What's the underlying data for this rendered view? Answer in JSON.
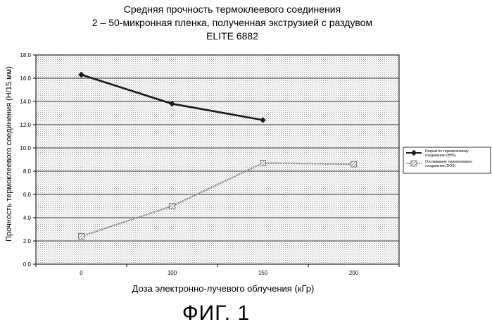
{
  "figure_caption": "ФИГ. 1",
  "chart_data": {
    "type": "line",
    "title_lines": [
      "Средняя прочность термоклеевого соединения",
      "2 – 50-микронная пленка, полученная экструзией с раздувом",
      "ELITE 6882"
    ],
    "xlabel": "Доза электронно-лучевого облучения (кГр)",
    "ylabel": "Прочность термоклеевого соединения (Н/15 мм)",
    "categories": [
      "0",
      "100",
      "150",
      "200"
    ],
    "ylim": [
      0,
      18
    ],
    "yticks": [
      "0.0",
      "2.0",
      "4.0",
      "6.0",
      "8.0",
      "10.0",
      "12.0",
      "14.0",
      "16.0",
      "18.0"
    ],
    "grid": true,
    "legend_position": "right",
    "series": [
      {
        "name": "Разрыв по термоклеевому соединению (BHS)",
        "values": [
          16.3,
          13.8,
          12.4,
          null
        ],
        "color": "#1a1a1a",
        "marker": "diamond"
      },
      {
        "name": "Отслаивание термоклеевого соединения (DOS)",
        "values": [
          2.4,
          5.0,
          8.7,
          8.6
        ],
        "color": "#8c8c8c",
        "marker": "hatched-square"
      }
    ]
  }
}
